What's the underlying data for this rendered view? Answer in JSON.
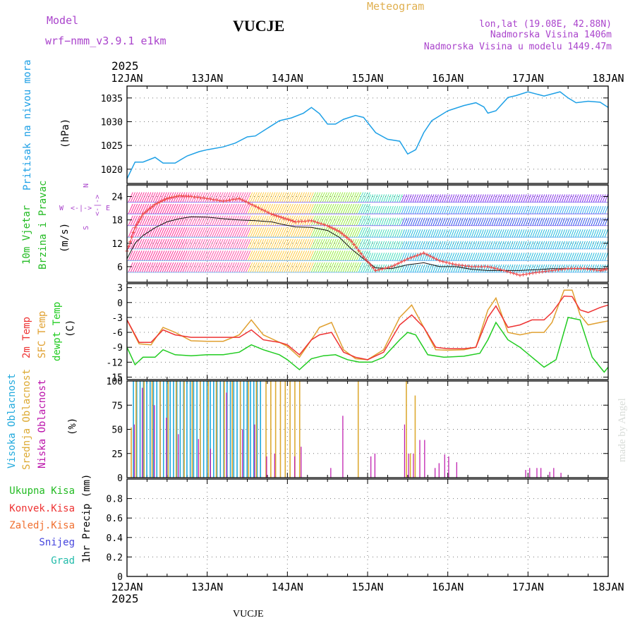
{
  "header": {
    "model_label": "Model",
    "model_name": "wrf−nmm_v3.9.1  e1km",
    "station": "VUCJE",
    "product": "Meteogram",
    "coords": "lon,lat (19.08E, 42.88N)",
    "elevation": "Nadmorska Visina 1406m",
    "model_elevation": "Nadmorska Visina u modelu 1449.47m",
    "year_top": "2025",
    "year_bottom": "2025",
    "footer_station": "VUCJE",
    "watermark": "made by Angel"
  },
  "colors": {
    "pressure": "#1ea0e6",
    "wind_label": "#22bb22",
    "temp2m": "#ee3333",
    "sfc": "#e0a030",
    "dewpt": "#22cc22",
    "cloud_high": "#22aadd",
    "cloud_mid": "#ddaa33",
    "cloud_low": "#bb11aa",
    "compass": "#aa44cc",
    "header_purple": "#aa44cc",
    "header_gold": "#e0b050"
  },
  "chart_data": [
    {
      "type": "line",
      "panel": "pressure",
      "ylabel_left": "Pritisak na nivou mora",
      "unit": "(hPa)",
      "x_ticks": [
        "12JAN",
        "13JAN",
        "14JAN",
        "15JAN",
        "16JAN",
        "17JAN",
        "18JAN"
      ],
      "x_range_days": [
        12,
        18
      ],
      "ylim": [
        1017,
        1037.5
      ],
      "y_ticks": [
        1020,
        1025,
        1030,
        1035
      ],
      "grid": true,
      "series": [
        {
          "x": [
            12.0,
            12.1,
            12.2,
            12.35,
            12.45,
            12.6,
            12.75,
            12.9,
            13.0,
            13.2,
            13.35,
            13.5,
            13.6,
            13.75,
            13.9,
            14.05,
            14.2,
            14.3,
            14.4,
            14.5,
            14.6,
            14.7,
            14.85,
            14.95,
            15.1,
            15.25,
            15.4,
            15.5,
            15.6,
            15.7,
            15.8,
            16.0,
            16.2,
            16.35,
            16.45,
            16.5,
            16.6,
            16.75,
            16.85,
            17.0,
            17.2,
            17.4,
            17.5,
            17.6,
            17.75,
            17.9,
            18.0
          ],
          "y": [
            1018.0,
            1021.5,
            1021.5,
            1022.5,
            1021.3,
            1021.3,
            1022.8,
            1023.7,
            1024.1,
            1024.7,
            1025.5,
            1026.8,
            1027.0,
            1028.6,
            1030.2,
            1030.8,
            1031.8,
            1033.0,
            1031.7,
            1029.5,
            1029.5,
            1030.5,
            1031.3,
            1030.9,
            1027.7,
            1026.3,
            1025.9,
            1023.2,
            1024.1,
            1027.7,
            1030.2,
            1032.3,
            1033.4,
            1034.0,
            1033.1,
            1031.8,
            1032.3,
            1035.1,
            1035.5,
            1036.3,
            1035.4,
            1036.3,
            1035.0,
            1034.0,
            1034.3,
            1034.1,
            1033.0
          ]
        }
      ]
    },
    {
      "type": "line",
      "panel": "wind",
      "ylabel_left": "10m Vjetar Brzina i Pravac",
      "unit": "(m/s)",
      "compass": {
        "north": "N",
        "south": "S",
        "west": "W",
        "east": "E"
      },
      "ylim": [
        2,
        27
      ],
      "y_ticks": [
        6,
        12,
        18,
        24
      ],
      "grid": true,
      "series": [
        {
          "name": "mean",
          "x": [
            12.0,
            12.1,
            12.2,
            12.35,
            12.5,
            12.65,
            12.8,
            13.0,
            13.2,
            13.4,
            13.6,
            13.8,
            13.95,
            14.1,
            14.3,
            14.5,
            14.65,
            14.8,
            14.95,
            15.1,
            15.3,
            15.5,
            15.7,
            15.9,
            16.1,
            16.3,
            16.5,
            16.7,
            16.9,
            17.1,
            17.3,
            17.5,
            17.7,
            17.9,
            18.0
          ],
          "y": [
            8.0,
            12.0,
            14.0,
            16.0,
            17.5,
            18.3,
            18.8,
            18.7,
            18.3,
            18.0,
            17.8,
            17.5,
            16.8,
            16.2,
            16.1,
            15.3,
            13.5,
            10.5,
            8.0,
            5.7,
            5.5,
            6.5,
            7.0,
            6.0,
            6.0,
            5.3,
            5.0,
            5.0,
            5.0,
            5.2,
            5.5,
            5.5,
            5.5,
            5.5,
            5.5
          ]
        },
        {
          "name": "gust",
          "x": [
            12.0,
            12.1,
            12.2,
            12.35,
            12.5,
            12.65,
            12.8,
            13.0,
            13.2,
            13.4,
            13.6,
            13.8,
            13.95,
            14.1,
            14.3,
            14.5,
            14.65,
            14.8,
            14.95,
            15.1,
            15.3,
            15.5,
            15.7,
            15.9,
            16.1,
            16.3,
            16.5,
            16.7,
            16.9,
            17.1,
            17.3,
            17.5,
            17.7,
            17.9,
            18.0
          ],
          "y": [
            10.0,
            16.0,
            19.5,
            22.0,
            23.5,
            24.2,
            24.0,
            23.5,
            22.8,
            23.5,
            21.5,
            19.5,
            18.5,
            17.5,
            17.8,
            16.5,
            15.0,
            12.5,
            8.5,
            5.0,
            6.0,
            8.0,
            9.5,
            7.5,
            6.5,
            6.0,
            6.0,
            5.0,
            3.8,
            4.5,
            5.0,
            5.5,
            5.5,
            5.0,
            5.5
          ]
        }
      ]
    },
    {
      "type": "line",
      "panel": "temperature",
      "ylabels": [
        "2m Temp",
        "SFC Temp",
        "dewpt Temp"
      ],
      "unit": "(C)",
      "ylim": [
        -15.5,
        3.8
      ],
      "y_ticks": [
        3,
        0,
        -3,
        -6,
        -9,
        -12,
        -15
      ],
      "grid": true,
      "series": [
        {
          "name": "2m Temp",
          "x": [
            12.0,
            12.15,
            12.3,
            12.45,
            12.6,
            12.8,
            13.0,
            13.2,
            13.4,
            13.55,
            13.7,
            13.9,
            14.0,
            14.15,
            14.3,
            14.4,
            14.55,
            14.7,
            14.85,
            15.0,
            15.2,
            15.4,
            15.55,
            15.7,
            15.85,
            16.0,
            16.2,
            16.35,
            16.5,
            16.6,
            16.75,
            16.9,
            17.05,
            17.2,
            17.3,
            17.45,
            17.55,
            17.65,
            17.75,
            17.9,
            18.0
          ],
          "y": [
            -3.5,
            -8.0,
            -8.0,
            -5.5,
            -6.5,
            -7.0,
            -7.0,
            -7.0,
            -7.0,
            -5.5,
            -7.5,
            -8.0,
            -8.5,
            -10.5,
            -7.5,
            -6.5,
            -6.0,
            -10.0,
            -11.0,
            -11.5,
            -10.0,
            -4.5,
            -2.5,
            -5.0,
            -9.0,
            -9.3,
            -9.3,
            -9.0,
            -3.0,
            -0.7,
            -5.0,
            -4.5,
            -3.5,
            -3.5,
            -2.0,
            1.3,
            1.2,
            -1.5,
            -2.0,
            -1.0,
            -0.5
          ]
        },
        {
          "name": "SFC Temp",
          "x": [
            12.0,
            12.15,
            12.3,
            12.45,
            12.6,
            12.8,
            13.0,
            13.2,
            13.4,
            13.55,
            13.7,
            13.9,
            14.0,
            14.15,
            14.3,
            14.4,
            14.55,
            14.7,
            14.85,
            15.0,
            15.2,
            15.4,
            15.55,
            15.7,
            15.85,
            16.0,
            16.2,
            16.35,
            16.5,
            16.6,
            16.75,
            16.9,
            17.05,
            17.2,
            17.3,
            17.45,
            17.55,
            17.65,
            17.75,
            17.9,
            18.0
          ],
          "y": [
            -3.5,
            -8.3,
            -8.5,
            -5.0,
            -6.0,
            -7.7,
            -7.8,
            -7.8,
            -6.5,
            -3.5,
            -6.5,
            -8.0,
            -8.8,
            -11.0,
            -7.5,
            -5.0,
            -4.0,
            -9.5,
            -11.3,
            -11.5,
            -9.5,
            -3.0,
            -0.5,
            -5.0,
            -9.5,
            -9.6,
            -9.5,
            -9.0,
            -1.5,
            0.9,
            -6.0,
            -6.5,
            -6.0,
            -6.0,
            -4.0,
            2.5,
            2.5,
            -2.5,
            -4.5,
            -4.0,
            -3.7
          ]
        },
        {
          "name": "dewpt Temp",
          "x": [
            12.0,
            12.1,
            12.2,
            12.35,
            12.45,
            12.6,
            12.8,
            13.0,
            13.2,
            13.4,
            13.55,
            13.7,
            13.9,
            14.0,
            14.15,
            14.3,
            14.45,
            14.6,
            14.75,
            14.9,
            15.05,
            15.2,
            15.4,
            15.5,
            15.6,
            15.75,
            15.95,
            16.2,
            16.4,
            16.5,
            16.6,
            16.75,
            16.9,
            17.05,
            17.2,
            17.35,
            17.5,
            17.65,
            17.8,
            17.95,
            18.0
          ],
          "y": [
            -9.0,
            -12.5,
            -11.0,
            -11.0,
            -9.5,
            -10.5,
            -10.7,
            -10.5,
            -10.5,
            -10.0,
            -8.5,
            -9.5,
            -10.5,
            -11.5,
            -13.5,
            -11.3,
            -10.7,
            -10.5,
            -11.5,
            -12.0,
            -12.0,
            -11.0,
            -7.5,
            -6.0,
            -6.5,
            -10.5,
            -11.0,
            -10.8,
            -10.2,
            -7.5,
            -4.0,
            -7.5,
            -9.0,
            -11.0,
            -13.0,
            -11.5,
            -3.0,
            -3.5,
            -11.0,
            -14.0,
            -13.0
          ]
        }
      ]
    },
    {
      "type": "bar",
      "panel": "clouds",
      "ylabels": [
        "Visoka Oblacnost",
        "Srednja Oblacnost",
        "Niska Oblacnost"
      ],
      "unit": "(%)",
      "ylim": [
        0,
        100
      ],
      "y_ticks": [
        0,
        25,
        50,
        75,
        100
      ],
      "grid": true,
      "series": [
        {
          "name": "Visoka Oblacnost",
          "x_range": [
            12.08,
            13.68
          ],
          "value": 100,
          "spacing_days": 0.0417
        },
        {
          "name": "Srednja Oblacnost",
          "bars": [
            [
              12.04,
              52
            ],
            [
              12.1,
              100
            ],
            [
              12.2,
              100
            ],
            [
              12.3,
              100
            ],
            [
              12.4,
              100
            ],
            [
              12.5,
              100
            ],
            [
              12.6,
              100
            ],
            [
              12.7,
              100
            ],
            [
              12.8,
              100
            ],
            [
              12.9,
              100
            ],
            [
              13.0,
              100
            ],
            [
              13.1,
              100
            ],
            [
              13.2,
              100
            ],
            [
              13.3,
              100
            ],
            [
              13.4,
              100
            ],
            [
              13.5,
              100
            ],
            [
              13.6,
              100
            ],
            [
              13.72,
              100
            ],
            [
              13.78,
              100
            ],
            [
              13.84,
              100
            ],
            [
              13.9,
              100
            ],
            [
              13.96,
              100
            ],
            [
              14.02,
              100
            ],
            [
              14.08,
              100
            ],
            [
              14.14,
              100
            ],
            [
              14.87,
              100
            ],
            [
              15.47,
              100
            ],
            [
              15.52,
              25
            ],
            [
              15.58,
              85
            ]
          ]
        },
        {
          "name": "Niska Oblacnost",
          "bars": [
            [
              12.1,
              55
            ],
            [
              12.2,
              93
            ],
            [
              12.35,
              75
            ],
            [
              12.5,
              62
            ],
            [
              12.65,
              45
            ],
            [
              12.9,
              40
            ],
            [
              13.05,
              30
            ],
            [
              13.25,
              88
            ],
            [
              13.45,
              50
            ],
            [
              13.6,
              55
            ],
            [
              13.75,
              22
            ],
            [
              13.85,
              25
            ],
            [
              14.1,
              22
            ],
            [
              14.18,
              32
            ],
            [
              14.55,
              10
            ],
            [
              14.7,
              64
            ],
            [
              15.05,
              22
            ],
            [
              15.1,
              25
            ],
            [
              15.47,
              55
            ],
            [
              15.52,
              25
            ],
            [
              15.58,
              25
            ],
            [
              15.66,
              39
            ],
            [
              15.72,
              39
            ],
            [
              15.85,
              10
            ],
            [
              15.9,
              15
            ],
            [
              15.97,
              24
            ],
            [
              16.02,
              22
            ],
            [
              16.12,
              16
            ],
            [
              16.98,
              8
            ],
            [
              17.03,
              10
            ],
            [
              17.12,
              10
            ],
            [
              17.17,
              10
            ],
            [
              17.28,
              6
            ],
            [
              17.33,
              10
            ],
            [
              17.42,
              5
            ]
          ]
        }
      ]
    },
    {
      "type": "bar",
      "panel": "precip",
      "ylabels": [
        "Ukupna Kisa",
        "Konvek.Kisa",
        "Zaledj.Kisa",
        "Snijeg",
        "Grad"
      ],
      "unit": "1hr Precip (mm)",
      "ylim": [
        0,
        1.0
      ],
      "y_ticks": [
        0,
        0.2,
        0.4,
        0.6,
        0.8
      ],
      "grid": true,
      "series": []
    }
  ]
}
